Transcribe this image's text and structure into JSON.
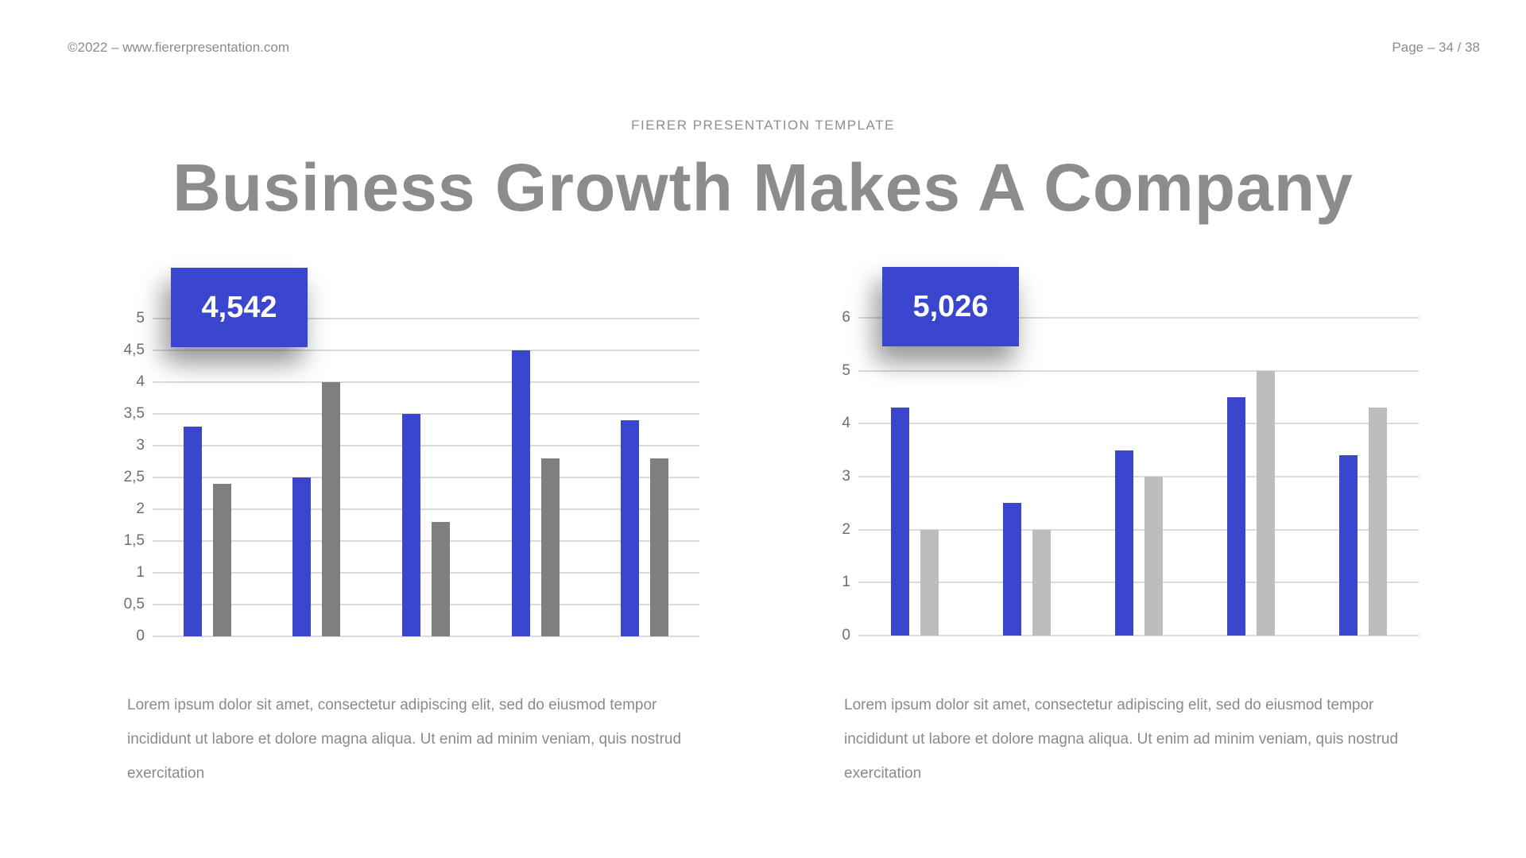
{
  "header": {
    "copyright": "©2022 – www.fiererpresentation.com",
    "page_indicator": "Page – 34 / 38"
  },
  "slide": {
    "kicker": "FIERER PRESENTATION TEMPLATE",
    "title": "Business Growth Makes A Company"
  },
  "colors": {
    "accent_blue": "#3A46CE",
    "bar_gray_dark": "#7F7F7F",
    "bar_gray_light": "#BDBDBD",
    "gridline": "#DBDBDB",
    "title_gray": "#8C8C8C",
    "text_gray": "#8A8A8A"
  },
  "chart_data": [
    {
      "type": "bar",
      "badge_value": "4,542",
      "ymax": 5,
      "ylim": [
        0,
        5
      ],
      "grid": true,
      "yticks": [
        {
          "label": "5",
          "value": 5
        },
        {
          "label": "4,5",
          "value": 4.5
        },
        {
          "label": "4",
          "value": 4
        },
        {
          "label": "3,5",
          "value": 3.5
        },
        {
          "label": "3",
          "value": 3
        },
        {
          "label": "2,5",
          "value": 2.5
        },
        {
          "label": "2",
          "value": 2
        },
        {
          "label": "1,5",
          "value": 1.5
        },
        {
          "label": "1",
          "value": 1
        },
        {
          "label": "0,5",
          "value": 0.5
        },
        {
          "label": "0",
          "value": 0
        }
      ],
      "series": [
        {
          "name": "blue",
          "color": "#3A46CE",
          "values": [
            3.3,
            2.5,
            3.5,
            4.5,
            3.4
          ]
        },
        {
          "name": "gray",
          "color": "#7F7F7F",
          "values": [
            2.4,
            4.0,
            1.8,
            2.8,
            2.8
          ]
        }
      ],
      "caption": "Lorem ipsum dolor sit amet, consectetur adipiscing elit, sed do eiusmod tempor incididunt ut labore et dolore magna aliqua. Ut enim ad minim veniam, quis nostrud exercitation"
    },
    {
      "type": "bar",
      "badge_value": "5,026",
      "ymax": 6,
      "ylim": [
        0,
        6
      ],
      "grid": true,
      "yticks": [
        {
          "label": "6",
          "value": 6
        },
        {
          "label": "5",
          "value": 5
        },
        {
          "label": "4",
          "value": 4
        },
        {
          "label": "3",
          "value": 3
        },
        {
          "label": "2",
          "value": 2
        },
        {
          "label": "1",
          "value": 1
        },
        {
          "label": "0",
          "value": 0
        }
      ],
      "series": [
        {
          "name": "blue",
          "color": "#3A46CE",
          "values": [
            4.3,
            2.5,
            3.5,
            4.5,
            3.4
          ]
        },
        {
          "name": "gray",
          "color": "#BDBDBD",
          "values": [
            2.0,
            2.0,
            3.0,
            5.0,
            4.3
          ]
        }
      ],
      "caption": "Lorem ipsum dolor sit amet, consectetur adipiscing elit, sed do eiusmod tempor incididunt ut labore et dolore magna aliqua. Ut enim ad minim veniam, quis nostrud exercitation"
    }
  ]
}
